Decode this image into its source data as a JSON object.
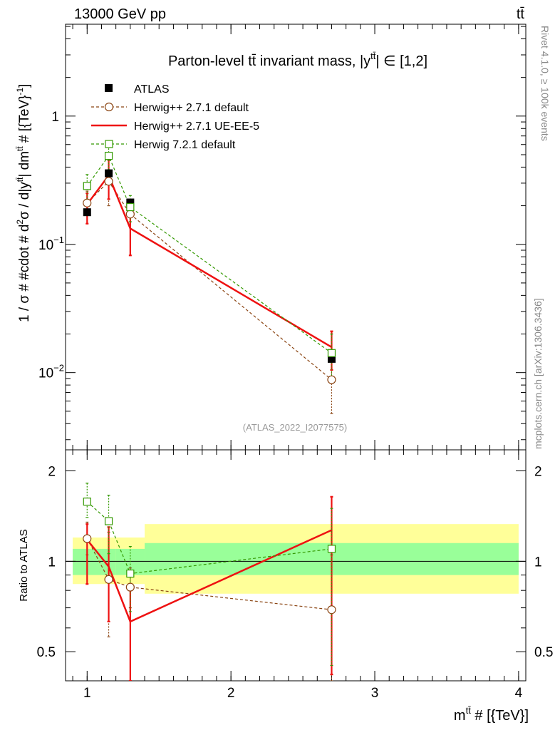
{
  "header": {
    "energy_label": "13000 GeV pp",
    "process_label": "tt̄"
  },
  "side_labels": {
    "rivet": "Rivet 4.1.0, ≥ 100k events",
    "source": "mcplots.cern.ch [arXiv:1306.3436]"
  },
  "chart_data": {
    "type": "line",
    "title": "Parton-level tt̄ invariant mass, |y^{tt̄}| ∈ [1,2]",
    "title_main": "Parton-level tt̄ invariant mass, |y",
    "title_sup": "tt̄",
    "title_tail": "| ∈ [1,2]",
    "analysis_id": "(ATLAS_2022_I2077575)",
    "xlabel": "m^{tt̄} # [{TeV}]",
    "xlabel_main": "m",
    "xlabel_sup": "tt̄",
    "xlabel_tail": " # [{TeV}]",
    "ylabel": "1 / σ # #cdot # d²σ / d|y^{tt̄}| dm^{tt̄} # [{TeV}⁻¹]",
    "ratio_ylabel": "Ratio to ATLAS",
    "xlim": [
      0.85,
      4.05
    ],
    "ylim_main": [
      0.0025,
      5.2
    ],
    "ylim_ratio": [
      0.4,
      2.35
    ],
    "x_ticks": [
      "1",
      "2",
      "3",
      "4"
    ],
    "x_tick_values": [
      1,
      2,
      3,
      4
    ],
    "y_ticks_main": [
      {
        "value": 1,
        "base": "1",
        "exp": ""
      },
      {
        "value": 0.1,
        "base": "10",
        "exp": "−1"
      },
      {
        "value": 0.01,
        "base": "10",
        "exp": "−2"
      }
    ],
    "y_ticks_ratio": [
      {
        "value": 2,
        "label": "2"
      },
      {
        "value": 1,
        "label": "1"
      },
      {
        "value": 0.5,
        "label": "0.5"
      }
    ],
    "bins": [
      {
        "low": 0.9,
        "high": 1.1
      },
      {
        "low": 1.1,
        "high": 1.2
      },
      {
        "low": 1.2,
        "high": 1.4
      },
      {
        "low": 1.4,
        "high": 4.0
      }
    ],
    "atlas": {
      "name": "ATLAS",
      "x": [
        1.0,
        1.15,
        1.3,
        2.7
      ],
      "values": [
        0.178,
        0.358,
        0.212,
        0.0128
      ],
      "band_stat": [
        [
          0.9,
          1.1
        ],
        [
          0.9,
          1.1
        ],
        [
          0.9,
          1.1
        ],
        [
          0.9,
          1.15
        ]
      ],
      "band_total": [
        [
          0.84,
          1.2
        ],
        [
          0.84,
          1.2
        ],
        [
          0.84,
          1.2
        ],
        [
          0.78,
          1.33
        ]
      ]
    },
    "series": [
      {
        "name": "Herwig++ 2.7.1 default",
        "color": "#8b4513",
        "style": "dashed",
        "marker": "circle",
        "x": [
          1.0,
          1.15,
          1.3,
          2.7
        ],
        "values": [
          0.21,
          0.31,
          0.172,
          0.0088
        ],
        "err_up": [
          0.26,
          0.45,
          0.2,
          0.013
        ],
        "err_down": [
          0.17,
          0.2,
          0.15,
          0.0048
        ],
        "ratio": [
          1.19,
          0.87,
          0.82,
          0.69
        ],
        "ratio_up": [
          1.35,
          1.25,
          0.95,
          1.05
        ],
        "ratio_down": [
          1.05,
          0.56,
          0.7,
          0.38
        ]
      },
      {
        "name": "Herwig++ 2.7.1 UE-EE-5",
        "color": "#ee1111",
        "style": "solid",
        "marker": "none",
        "x": [
          1.0,
          1.15,
          1.3,
          2.7
        ],
        "values": [
          0.205,
          0.345,
          0.133,
          0.0158
        ],
        "err_up": [
          0.25,
          0.48,
          0.17,
          0.021
        ],
        "err_down": [
          0.145,
          0.225,
          0.082,
          0.0105
        ],
        "ratio": [
          1.18,
          0.96,
          0.63,
          1.27
        ],
        "ratio_up": [
          1.33,
          1.3,
          0.82,
          1.64
        ],
        "ratio_down": [
          0.84,
          0.63,
          0.3,
          0.42
        ]
      },
      {
        "name": "Herwig 7.2.1 default",
        "color": "#339900",
        "style": "dashed",
        "marker": "square",
        "x": [
          1.0,
          1.15,
          1.3,
          2.7
        ],
        "values": [
          0.285,
          0.49,
          0.195,
          0.0142
        ],
        "err_up": [
          0.35,
          0.62,
          0.24,
          0.02
        ],
        "err_down": [
          0.22,
          0.38,
          0.15,
          0.009
        ],
        "ratio": [
          1.58,
          1.36,
          0.91,
          1.1
        ],
        "ratio_up": [
          1.82,
          1.66,
          1.12,
          1.5
        ],
        "ratio_down": [
          1.4,
          1.06,
          0.68,
          0.45
        ]
      }
    ]
  }
}
